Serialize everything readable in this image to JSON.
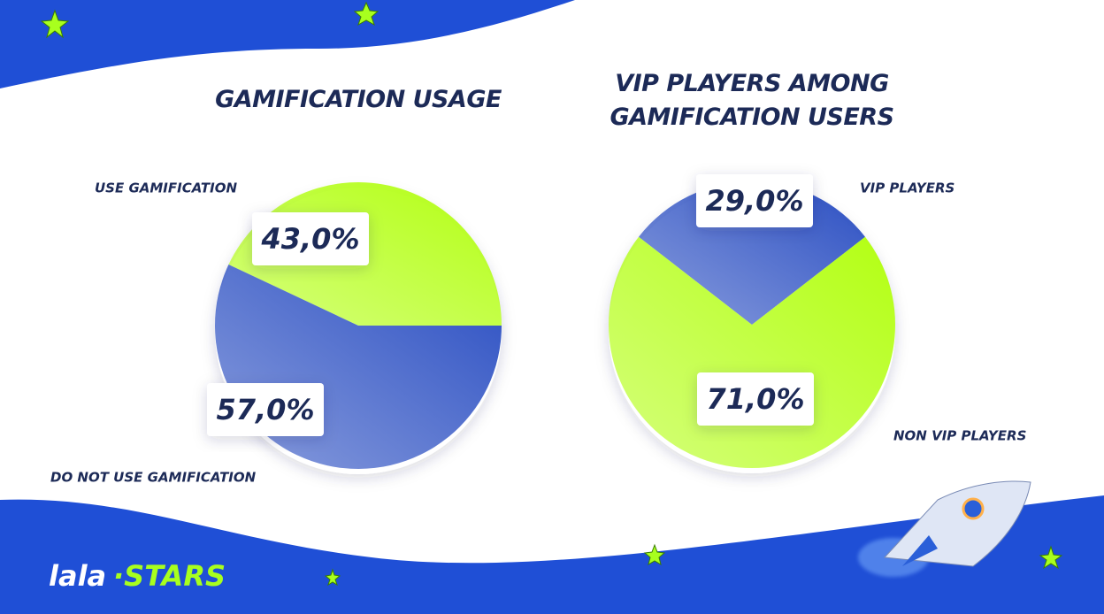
{
  "brand": [
    "lala",
    "·STARS"
  ],
  "chart_data": [
    {
      "type": "pie",
      "title": "GAMIFICATION USAGE",
      "categories": [
        "USE GAMIFICATION",
        "DO NOT USE GAMIFICATION"
      ],
      "values": [
        43,
        57
      ],
      "value_labels": [
        "43,0%",
        "57,0%"
      ],
      "colors": [
        "#b3ff12",
        "#2a4ec2"
      ]
    },
    {
      "type": "pie",
      "title": "VIP PLAYERS AMONG GAMIFICATION USERS",
      "categories": [
        "VIP PLAYERS",
        "NON VIP PLAYERS"
      ],
      "values": [
        29,
        71
      ],
      "value_labels": [
        "29,0%",
        "71,0%"
      ],
      "colors": [
        "#2a4ec2",
        "#b3ff12"
      ]
    }
  ]
}
